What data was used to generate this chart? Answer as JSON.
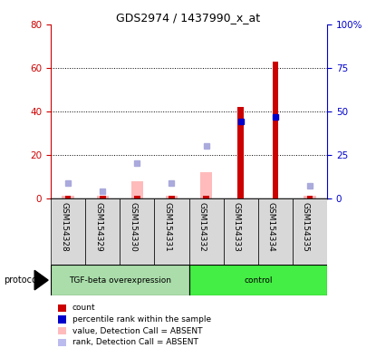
{
  "title": "GDS2974 / 1437990_x_at",
  "samples": [
    "GSM154328",
    "GSM154329",
    "GSM154330",
    "GSM154331",
    "GSM154332",
    "GSM154333",
    "GSM154334",
    "GSM154335"
  ],
  "red_bars": [
    1,
    1,
    1,
    1,
    1,
    42,
    63,
    1
  ],
  "blue_squares_right": [
    null,
    null,
    null,
    null,
    null,
    44,
    47,
    null
  ],
  "pink_bars": [
    1,
    1,
    8,
    1,
    12,
    null,
    null,
    1
  ],
  "lightblue_squares_right": [
    9,
    4,
    20,
    9,
    30,
    null,
    null,
    7
  ],
  "left_ylim": [
    0,
    80
  ],
  "right_ylim": [
    0,
    100
  ],
  "left_yticks": [
    0,
    20,
    40,
    60,
    80
  ],
  "right_yticks": [
    0,
    25,
    50,
    75,
    100
  ],
  "right_yticklabels": [
    "0",
    "25",
    "50",
    "75",
    "100%"
  ],
  "left_color": "#cc0000",
  "right_color": "#0000cc",
  "tgf_color": "#aaddaa",
  "ctrl_color": "#44ee44",
  "legend_items": [
    {
      "label": "count",
      "color": "#cc0000"
    },
    {
      "label": "percentile rank within the sample",
      "color": "#0000cc"
    },
    {
      "label": "value, Detection Call = ABSENT",
      "color": "#ffbbbb"
    },
    {
      "label": "rank, Detection Call = ABSENT",
      "color": "#bbbbee"
    }
  ]
}
